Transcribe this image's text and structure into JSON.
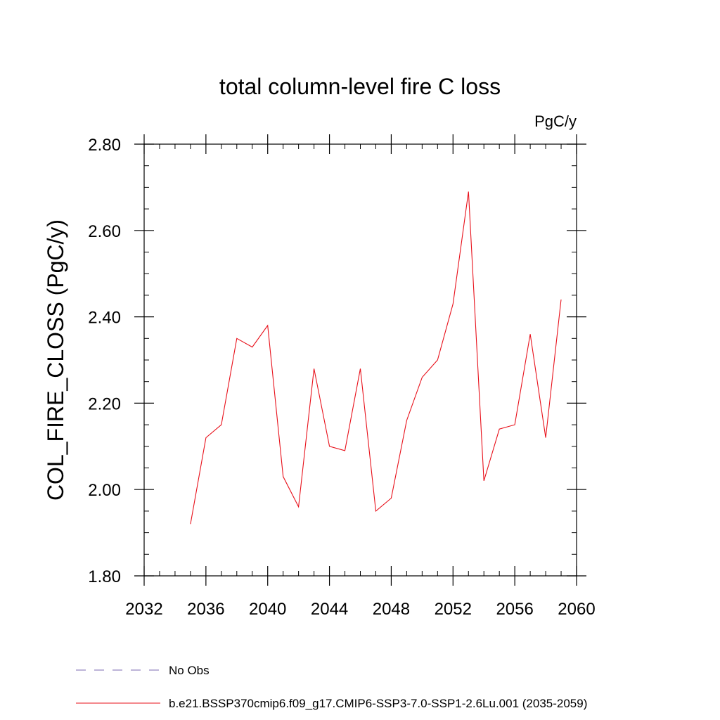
{
  "chart_data": {
    "type": "line",
    "title": "total column-level fire C loss",
    "units_label": "PgC/y",
    "xlabel": "",
    "ylabel": "COL_FIRE_CLOSS  (PgC/y)",
    "xlim": [
      2032,
      2060
    ],
    "ylim": [
      1.8,
      2.8
    ],
    "x_ticks": [
      2032,
      2036,
      2040,
      2044,
      2048,
      2052,
      2056,
      2060
    ],
    "x_tick_labels": [
      "2032",
      "2036",
      "2040",
      "2044",
      "2048",
      "2052",
      "2056",
      "2060"
    ],
    "x_minor_step": 1,
    "y_ticks": [
      1.8,
      2.0,
      2.2,
      2.4,
      2.6,
      2.8
    ],
    "y_tick_labels": [
      "1.80",
      "2.00",
      "2.20",
      "2.40",
      "2.60",
      "2.80"
    ],
    "y_minor_step": 0.05,
    "grid": false,
    "legend_position": "bottom",
    "legend": [
      {
        "label": "No Obs",
        "color": "#7b68b0",
        "style": "dashed"
      },
      {
        "label": "b.e21.BSSP370cmip6.f09_g17.CMIP6-SSP3-7.0-SSP1-2.6Lu.001 (2035-2059)",
        "color": "#e8101a",
        "style": "solid"
      }
    ],
    "series": [
      {
        "color": "#e8101a",
        "x": [
          2035,
          2036,
          2037,
          2038,
          2039,
          2040,
          2041,
          2042,
          2043,
          2044,
          2045,
          2046,
          2047,
          2048,
          2049,
          2050,
          2051,
          2052,
          2053,
          2054,
          2055,
          2056,
          2057,
          2058,
          2059
        ],
        "values": [
          1.92,
          2.12,
          2.15,
          2.35,
          2.33,
          2.38,
          2.03,
          1.96,
          2.28,
          2.1,
          2.09,
          2.28,
          1.95,
          1.98,
          2.16,
          2.26,
          2.3,
          2.43,
          2.69,
          2.02,
          2.14,
          2.15,
          2.36,
          2.12,
          2.44
        ]
      }
    ]
  }
}
